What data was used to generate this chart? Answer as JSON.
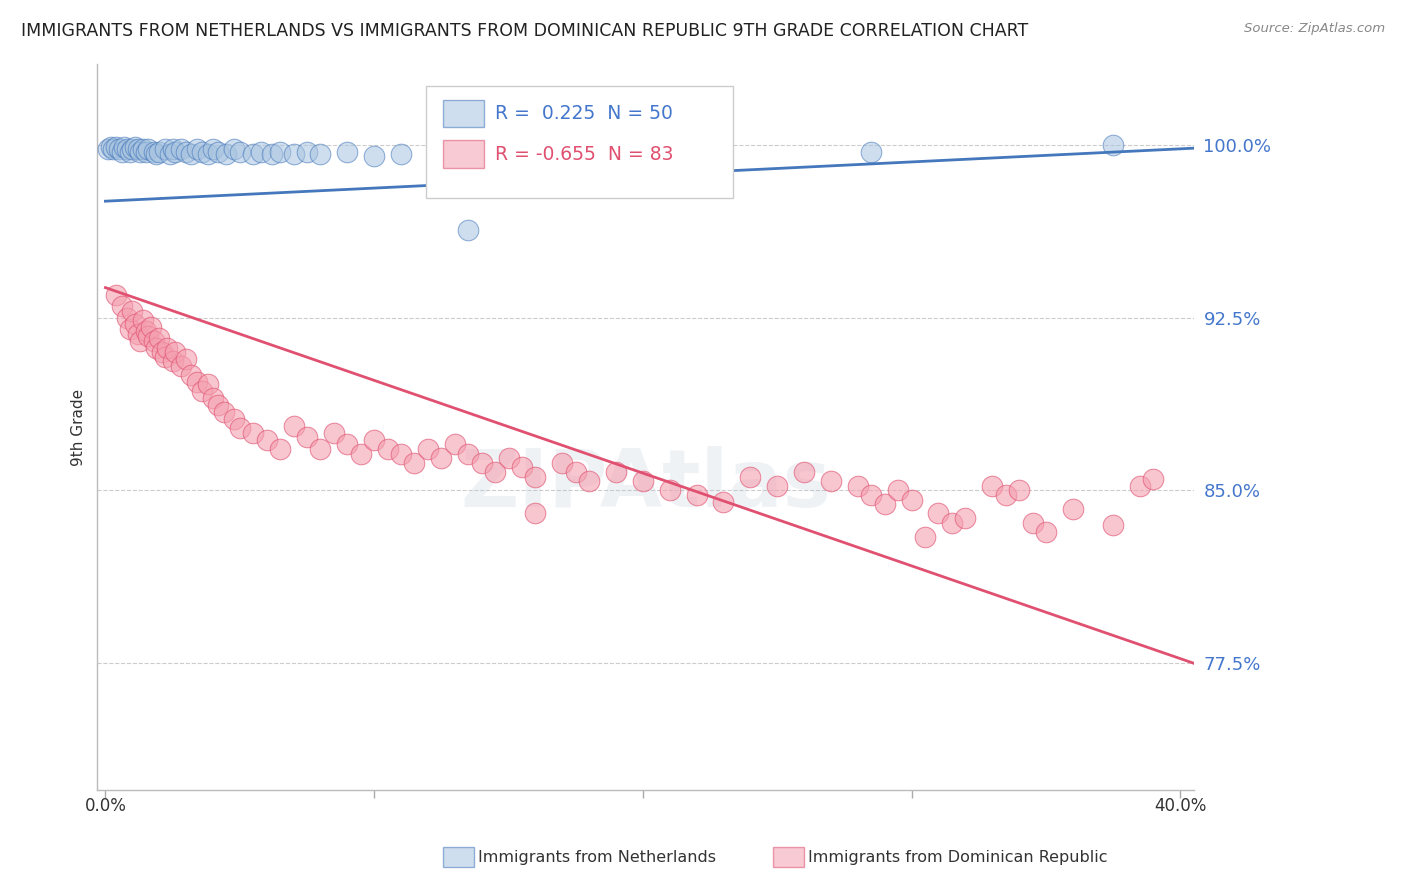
{
  "title": "IMMIGRANTS FROM NETHERLANDS VS IMMIGRANTS FROM DOMINICAN REPUBLIC 9TH GRADE CORRELATION CHART",
  "source": "Source: ZipAtlas.com",
  "ylabel": "9th Grade",
  "ylim": [
    0.72,
    1.035
  ],
  "xlim": [
    -0.003,
    0.405
  ],
  "legend_R1": "0.225",
  "legend_N1": "50",
  "legend_R2": "-0.655",
  "legend_N2": "83",
  "blue_color": "#A8C4E0",
  "pink_color": "#F4A0B0",
  "line_blue": "#4477BB",
  "line_pink": "#E05070",
  "label_color": "#4477CC",
  "background_color": "#FFFFFF",
  "yticks": [
    0.775,
    0.85,
    0.925,
    1.0
  ],
  "ytick_labels": [
    "77.5%",
    "85.0%",
    "92.5%",
    "100.0%"
  ],
  "netherlands_line_x": [
    0.0,
    0.405
  ],
  "netherlands_line_y": [
    0.9755,
    0.9985
  ],
  "dominican_line_x": [
    0.0,
    0.405
  ],
  "dominican_line_y": [
    0.938,
    0.775
  ],
  "netherlands_points": [
    [
      0.001,
      0.998
    ],
    [
      0.002,
      0.999
    ],
    [
      0.003,
      0.998
    ],
    [
      0.004,
      0.999
    ],
    [
      0.005,
      0.998
    ],
    [
      0.006,
      0.997
    ],
    [
      0.007,
      0.999
    ],
    [
      0.008,
      0.998
    ],
    [
      0.009,
      0.997
    ],
    [
      0.01,
      0.998
    ],
    [
      0.011,
      0.999
    ],
    [
      0.012,
      0.998
    ],
    [
      0.013,
      0.997
    ],
    [
      0.014,
      0.998
    ],
    [
      0.015,
      0.997
    ],
    [
      0.016,
      0.998
    ],
    [
      0.018,
      0.997
    ],
    [
      0.019,
      0.996
    ],
    [
      0.02,
      0.997
    ],
    [
      0.022,
      0.998
    ],
    [
      0.024,
      0.996
    ],
    [
      0.025,
      0.998
    ],
    [
      0.026,
      0.997
    ],
    [
      0.028,
      0.998
    ],
    [
      0.03,
      0.997
    ],
    [
      0.032,
      0.996
    ],
    [
      0.034,
      0.998
    ],
    [
      0.036,
      0.997
    ],
    [
      0.038,
      0.996
    ],
    [
      0.04,
      0.998
    ],
    [
      0.042,
      0.997
    ],
    [
      0.045,
      0.996
    ],
    [
      0.048,
      0.998
    ],
    [
      0.05,
      0.997
    ],
    [
      0.055,
      0.996
    ],
    [
      0.058,
      0.997
    ],
    [
      0.062,
      0.996
    ],
    [
      0.065,
      0.997
    ],
    [
      0.07,
      0.996
    ],
    [
      0.075,
      0.997
    ],
    [
      0.08,
      0.996
    ],
    [
      0.09,
      0.997
    ],
    [
      0.1,
      0.995
    ],
    [
      0.11,
      0.996
    ],
    [
      0.135,
      0.963
    ],
    [
      0.15,
      0.996
    ],
    [
      0.285,
      0.997
    ],
    [
      0.375,
      1.0
    ]
  ],
  "dominican_points": [
    [
      0.004,
      0.935
    ],
    [
      0.006,
      0.93
    ],
    [
      0.008,
      0.925
    ],
    [
      0.009,
      0.92
    ],
    [
      0.01,
      0.928
    ],
    [
      0.011,
      0.922
    ],
    [
      0.012,
      0.918
    ],
    [
      0.013,
      0.915
    ],
    [
      0.014,
      0.924
    ],
    [
      0.015,
      0.919
    ],
    [
      0.016,
      0.917
    ],
    [
      0.017,
      0.921
    ],
    [
      0.018,
      0.915
    ],
    [
      0.019,
      0.912
    ],
    [
      0.02,
      0.916
    ],
    [
      0.021,
      0.91
    ],
    [
      0.022,
      0.908
    ],
    [
      0.023,
      0.912
    ],
    [
      0.025,
      0.906
    ],
    [
      0.026,
      0.91
    ],
    [
      0.028,
      0.904
    ],
    [
      0.03,
      0.907
    ],
    [
      0.032,
      0.9
    ],
    [
      0.034,
      0.897
    ],
    [
      0.036,
      0.893
    ],
    [
      0.038,
      0.896
    ],
    [
      0.04,
      0.89
    ],
    [
      0.042,
      0.887
    ],
    [
      0.044,
      0.884
    ],
    [
      0.048,
      0.881
    ],
    [
      0.05,
      0.877
    ],
    [
      0.055,
      0.875
    ],
    [
      0.06,
      0.872
    ],
    [
      0.065,
      0.868
    ],
    [
      0.07,
      0.878
    ],
    [
      0.075,
      0.873
    ],
    [
      0.08,
      0.868
    ],
    [
      0.085,
      0.875
    ],
    [
      0.09,
      0.87
    ],
    [
      0.095,
      0.866
    ],
    [
      0.1,
      0.872
    ],
    [
      0.105,
      0.868
    ],
    [
      0.11,
      0.866
    ],
    [
      0.115,
      0.862
    ],
    [
      0.12,
      0.868
    ],
    [
      0.125,
      0.864
    ],
    [
      0.13,
      0.87
    ],
    [
      0.135,
      0.866
    ],
    [
      0.14,
      0.862
    ],
    [
      0.145,
      0.858
    ],
    [
      0.15,
      0.864
    ],
    [
      0.155,
      0.86
    ],
    [
      0.16,
      0.856
    ],
    [
      0.17,
      0.862
    ],
    [
      0.175,
      0.858
    ],
    [
      0.18,
      0.854
    ],
    [
      0.19,
      0.858
    ],
    [
      0.2,
      0.854
    ],
    [
      0.21,
      0.85
    ],
    [
      0.22,
      0.848
    ],
    [
      0.23,
      0.845
    ],
    [
      0.24,
      0.856
    ],
    [
      0.25,
      0.852
    ],
    [
      0.26,
      0.858
    ],
    [
      0.27,
      0.854
    ],
    [
      0.28,
      0.852
    ],
    [
      0.285,
      0.848
    ],
    [
      0.29,
      0.844
    ],
    [
      0.295,
      0.85
    ],
    [
      0.3,
      0.846
    ],
    [
      0.31,
      0.84
    ],
    [
      0.315,
      0.836
    ],
    [
      0.32,
      0.838
    ],
    [
      0.33,
      0.852
    ],
    [
      0.335,
      0.848
    ],
    [
      0.34,
      0.85
    ],
    [
      0.345,
      0.836
    ],
    [
      0.35,
      0.832
    ],
    [
      0.36,
      0.842
    ],
    [
      0.375,
      0.835
    ],
    [
      0.385,
      0.852
    ],
    [
      0.39,
      0.855
    ],
    [
      0.305,
      0.83
    ],
    [
      0.16,
      0.84
    ]
  ],
  "watermark": "ZIPAtlas"
}
